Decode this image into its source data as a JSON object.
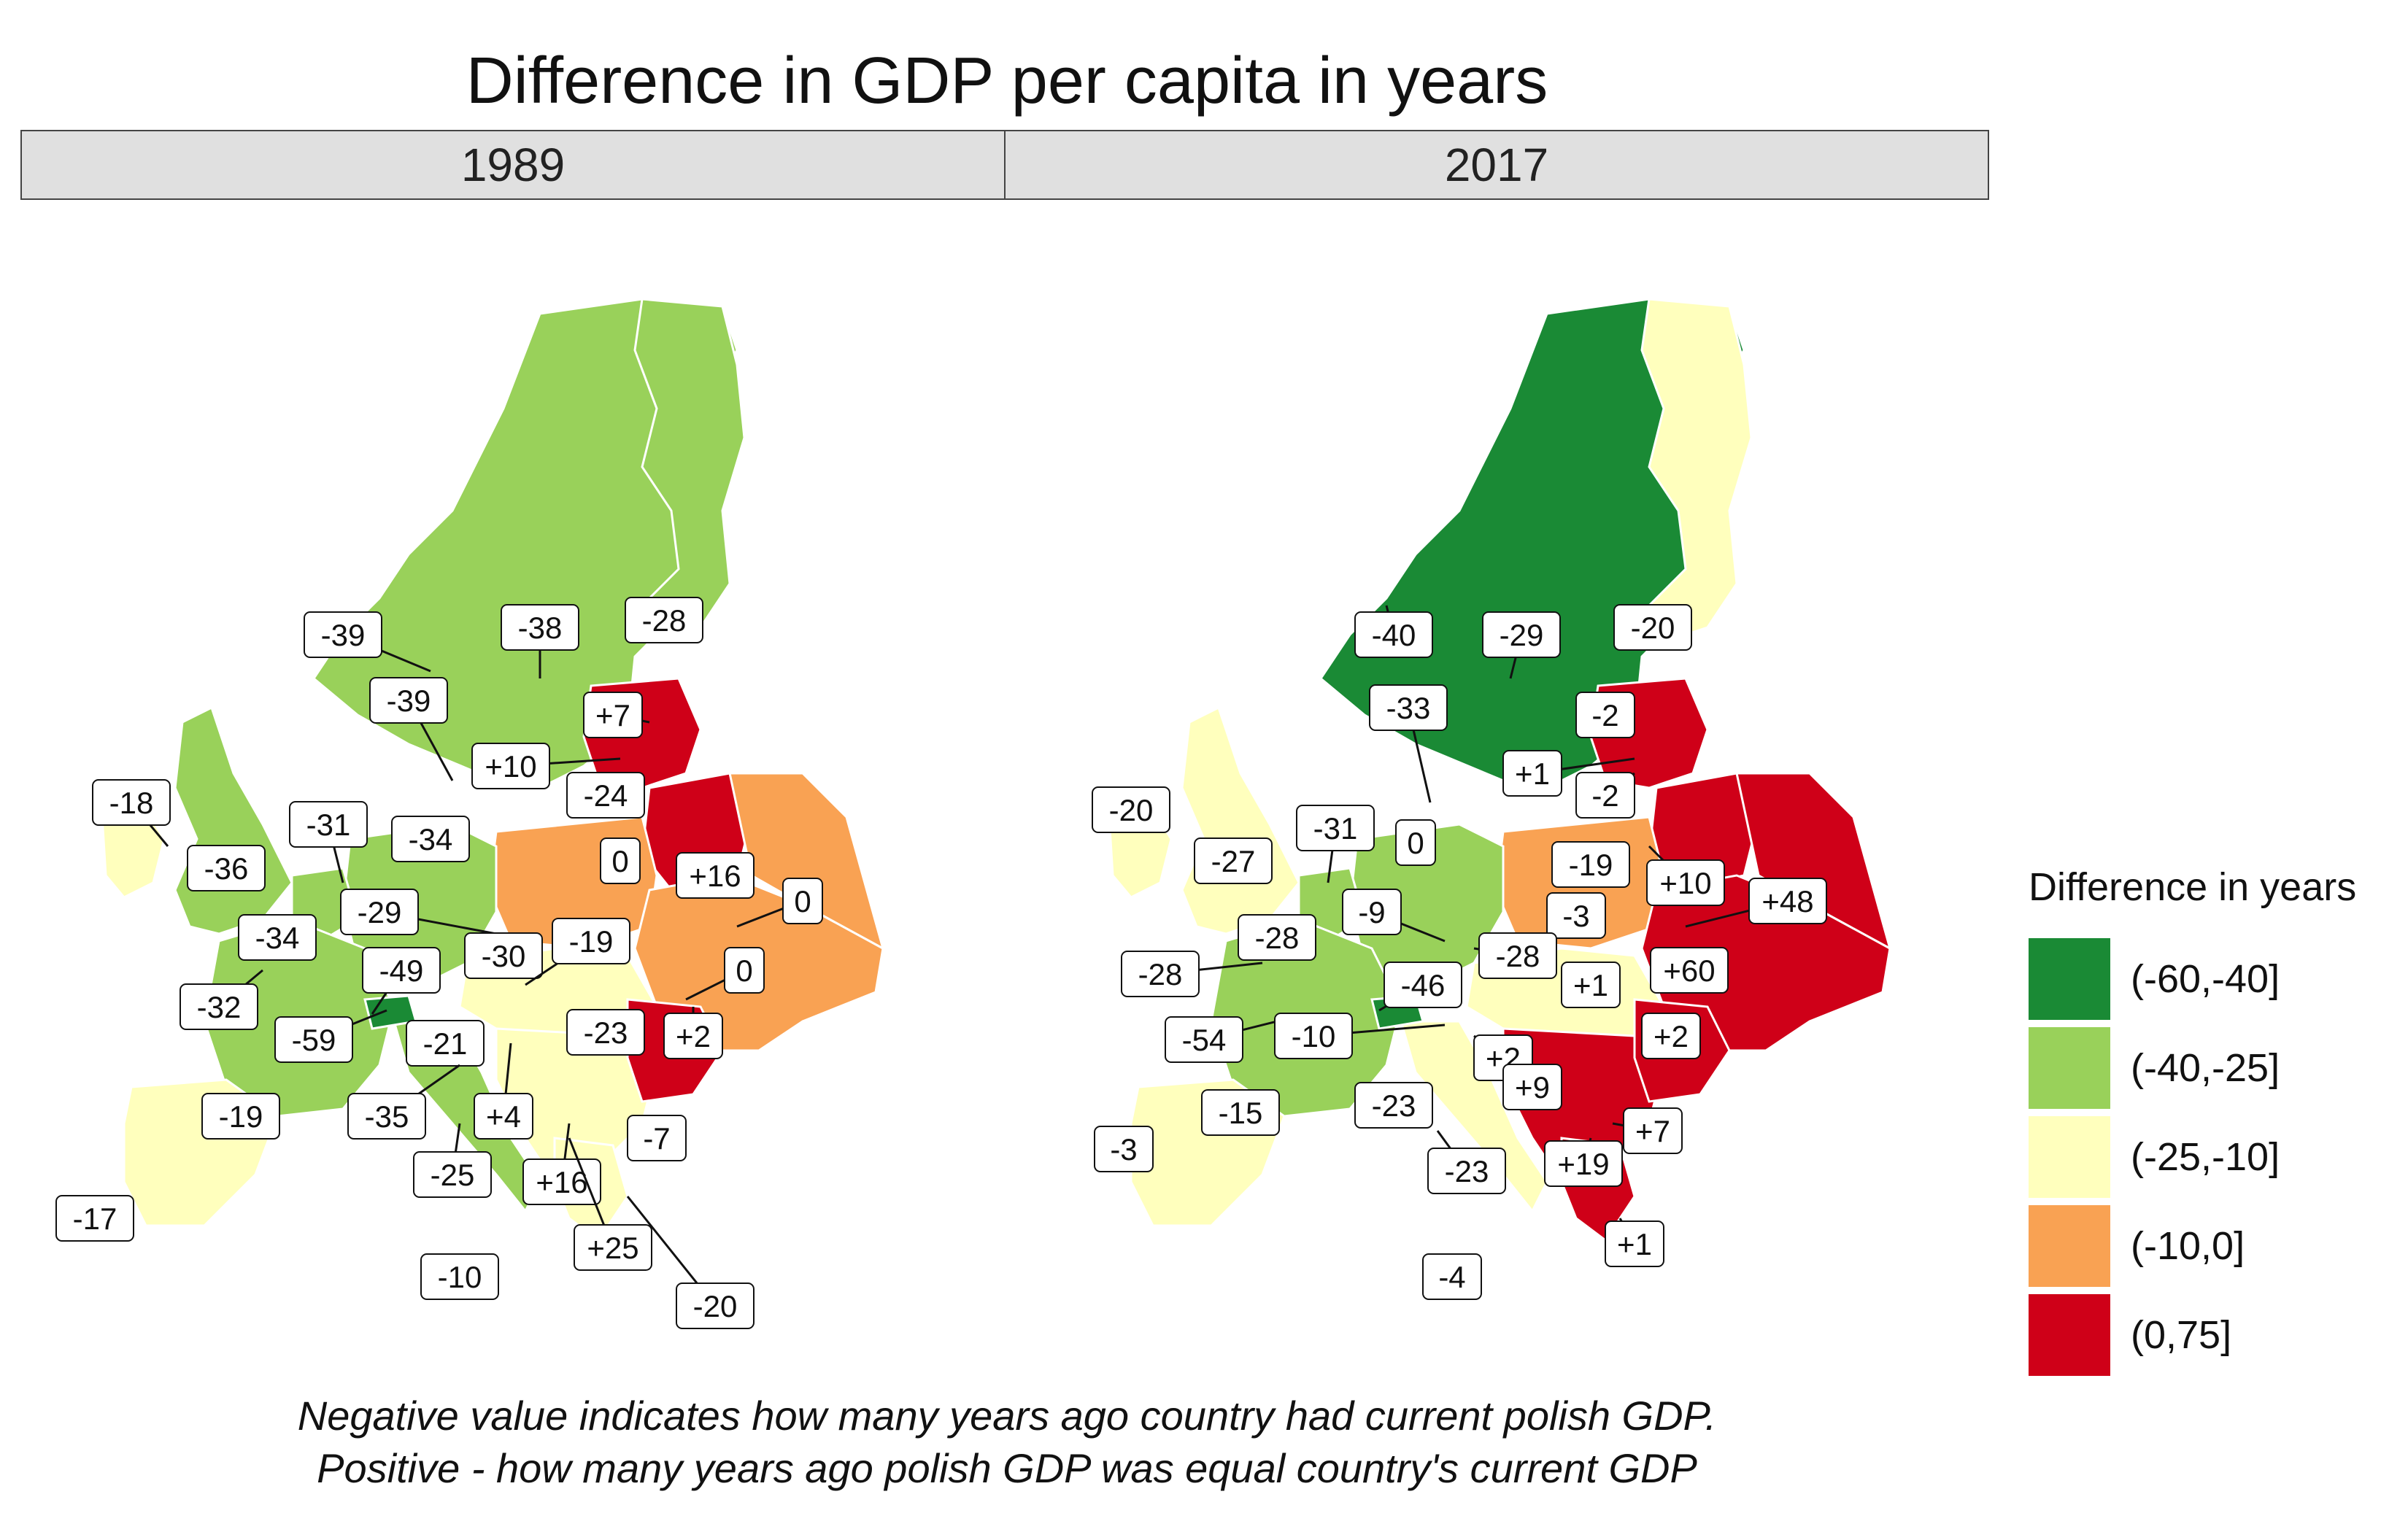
{
  "title": "Difference in GDP per capita in years",
  "panels": [
    {
      "label": "1989",
      "labels": [
        "-39",
        "-38",
        "-28",
        "-39",
        "+7",
        "+10",
        "-24",
        "-18",
        "-36",
        "-31",
        "-34",
        "0",
        "+16",
        "0",
        "-29",
        "-30",
        "-19",
        "-34",
        "0",
        "-32",
        "-49",
        "-23",
        "+2",
        "-59",
        "-21",
        "+4",
        "-7",
        "-35",
        "-19",
        "-25",
        "+16",
        "-17",
        "+25",
        "-10",
        "-20"
      ]
    },
    {
      "label": "2017",
      "labels": [
        "-40",
        "-29",
        "-20",
        "-33",
        "-2",
        "+1",
        "-2",
        "-20",
        "-27",
        "-31",
        "0",
        "-19",
        "+10",
        "+48",
        "-28",
        "-9",
        "-3",
        "-28",
        "-28",
        "+1",
        "+60",
        "-46",
        "-54",
        "-10",
        "+2",
        "+2",
        "+9",
        "-15",
        "-23",
        "+7",
        "-3",
        "-23",
        "+19",
        "+1",
        "-4"
      ]
    }
  ],
  "legend": {
    "title": "Difference in years",
    "items": [
      {
        "label": "(-60,-40]",
        "color": "#1a8a35"
      },
      {
        "label": "(-40,-25]",
        "color": "#99d15a"
      },
      {
        "label": "(-25,-10]",
        "color": "#ffffbd"
      },
      {
        "label": "(-10,0]",
        "color": "#f9a253"
      },
      {
        "label": "(0,75]",
        "color": "#cf0018"
      }
    ]
  },
  "caption": {
    "line1": "Negative value indicates how many years ago country had current polish GDP.",
    "line2": "Positive - how many years ago polish GDP was equal country's current GDP"
  }
}
